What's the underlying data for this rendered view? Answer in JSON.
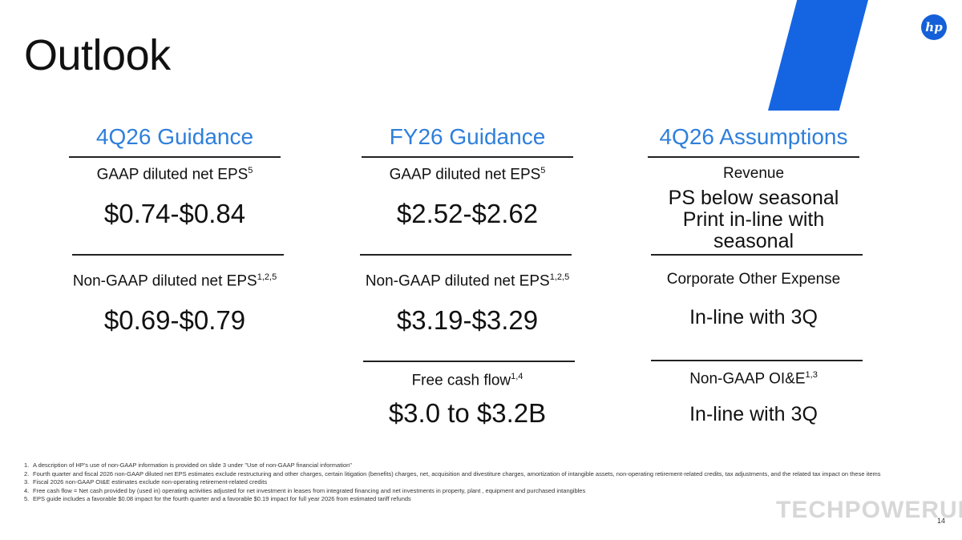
{
  "title": "Outlook",
  "logo_text": "hp",
  "columns": [
    {
      "header": "4Q26 Guidance",
      "blocks": [
        {
          "label": "GAAP diluted net EPS",
          "sup": "5",
          "value": "$0.74-$0.84"
        },
        {
          "label": "Non-GAAP diluted net EPS",
          "sup": "1,2,5",
          "value": "$0.69-$0.79"
        }
      ]
    },
    {
      "header": "FY26 Guidance",
      "blocks": [
        {
          "label": "GAAP diluted net EPS",
          "sup": "5",
          "value": "$2.52-$2.62"
        },
        {
          "label": "Non-GAAP diluted net EPS",
          "sup": "1,2,5",
          "value": "$3.19-$3.29"
        },
        {
          "label": "Free cash flow",
          "sup": "1,4",
          "value": "$3.0 to $3.2B"
        }
      ]
    },
    {
      "header": "4Q26 Assumptions",
      "blocks": [
        {
          "label": "Revenue",
          "sup": "",
          "value_line1": "PS below seasonal",
          "value_line2": "Print in-line with seasonal"
        },
        {
          "label": "Corporate Other Expense",
          "sup": "",
          "value": "In-line with 3Q"
        },
        {
          "label": "Non-GAAP OI&E",
          "sup": "1,3",
          "value": "In-line with 3Q"
        }
      ]
    }
  ],
  "footnotes": [
    {
      "num": "1.",
      "text": "A description of HP's use of non-GAAP information is provided on slide 3 under \"Use of non-GAAP financial information\""
    },
    {
      "num": "2.",
      "text": "Fourth quarter and fiscal 2026 non-GAAP diluted net EPS estimates exclude restructuring and other charges, certain litigation (benefits) charges, net, acquisition and divestiture charges, amortization of intangible assets, non-operating retirement-related credits, tax adjustments, and the related tax impact on these items"
    },
    {
      "num": "3.",
      "text": "Fiscal 2026 non-GAAP OI&E estimates exclude non-operating retirement-related credits"
    },
    {
      "num": "4.",
      "text": "Free cash flow = Net cash provided by (used in) operating activities adjusted for net investment in leases from integrated financing and net investments in property, plant , equipment and purchased intangibles"
    },
    {
      "num": "5.",
      "text": "EPS guide includes a favorable $0.08 impact for the fourth quarter and a favorable $0.19 impact for full year 2026 from estimated tariff refunds"
    }
  ],
  "watermark": "TECHPOWERUP",
  "page_number": "14",
  "colors": {
    "accent": "#2e7fdb",
    "stripe": "#1565e3"
  }
}
